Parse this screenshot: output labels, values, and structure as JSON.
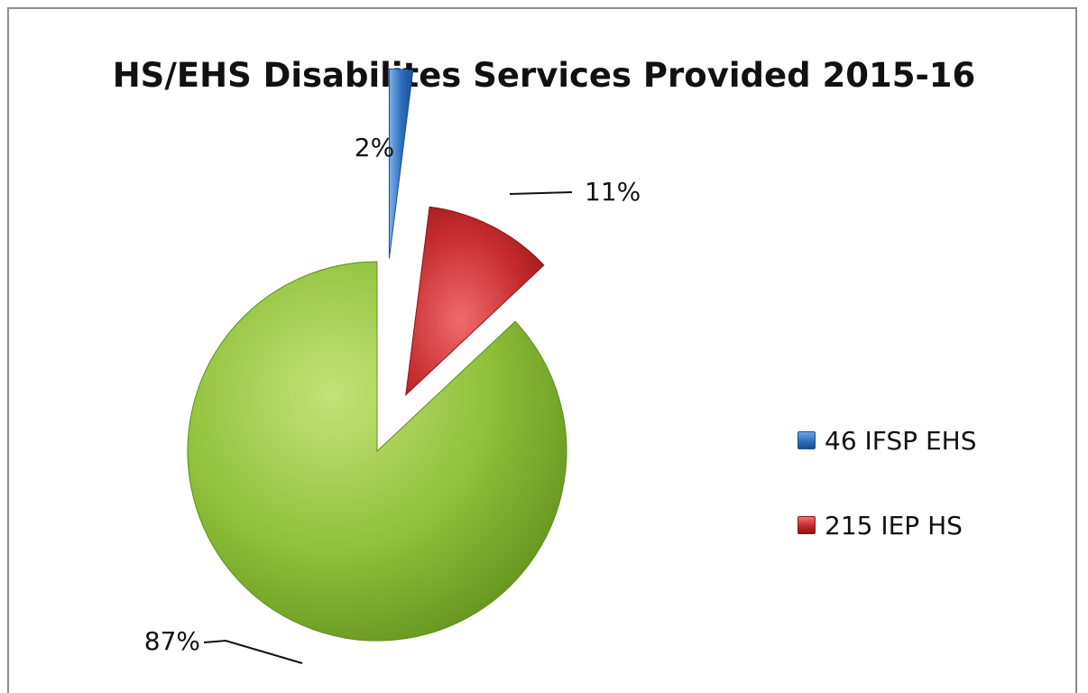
{
  "chart_data": {
    "type": "pie",
    "title": "HS/EHS Disabilites Services Provided 2015-16",
    "slices": [
      {
        "legend": "46 IFSP EHS",
        "label": "2%",
        "value": 2,
        "color": "#2f6fbf"
      },
      {
        "legend": "215 IEP HS",
        "label": "11%",
        "value": 11,
        "color": "#c0282b"
      },
      {
        "legend": "",
        "label": "87%",
        "value": 87,
        "color": "#86b82c"
      }
    ],
    "legend_position": "right"
  }
}
